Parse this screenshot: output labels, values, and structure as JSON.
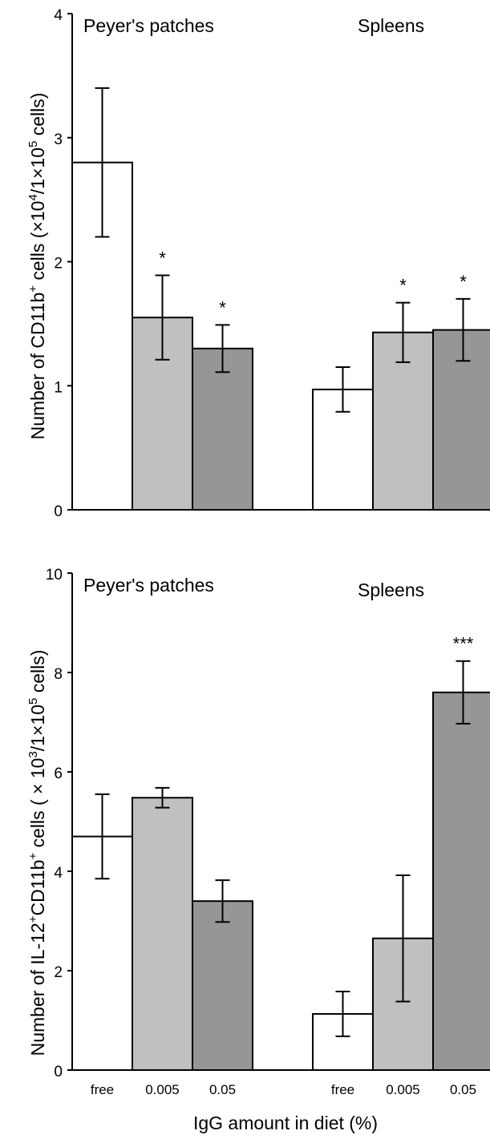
{
  "figure": {
    "xlabel": "IgG amount in diet (%)"
  },
  "chart_data": [
    {
      "type": "bar",
      "ylabel_parts": {
        "a": "Number of CD11b",
        "sup1": "+",
        "b": " cells (×10",
        "sup2": "4",
        "c": "/1×10",
        "sup3": "5",
        "d": " cells)"
      },
      "ylim": [
        0,
        4
      ],
      "yticks": [
        "0",
        "1",
        "2",
        "3",
        "4"
      ],
      "tick_values": [
        0,
        1,
        2,
        3,
        4
      ],
      "groups": [
        {
          "label": "Peyer's patches",
          "bars": [
            {
              "category": "free",
              "value": 2.8,
              "err": 0.6,
              "sig": ""
            },
            {
              "category": "0.005",
              "value": 1.55,
              "err": 0.34,
              "sig": "*"
            },
            {
              "category": "0.05",
              "value": 1.3,
              "err": 0.19,
              "sig": "*"
            }
          ]
        },
        {
          "label": "Spleens",
          "bars": [
            {
              "category": "free",
              "value": 0.97,
              "err": 0.18,
              "sig": ""
            },
            {
              "category": "0.005",
              "value": 1.43,
              "err": 0.24,
              "sig": "*"
            },
            {
              "category": "0.05",
              "value": 1.45,
              "err": 0.25,
              "sig": "*"
            }
          ]
        }
      ],
      "colors": [
        "#ffffff",
        "#c0c0c0",
        "#969696"
      ]
    },
    {
      "type": "bar",
      "ylabel_parts": {
        "a": "Number of IL-12",
        "sup1": "+",
        "b": "CD11b",
        "sup2": "+",
        "c": " cells ( × 10",
        "sup3": "3",
        "d": "/1×10",
        "sup4": "5",
        "e": " cells)"
      },
      "ylim": [
        0,
        10
      ],
      "yticks": [
        "0",
        "2",
        "4",
        "6",
        "8",
        "10"
      ],
      "tick_values": [
        0,
        2,
        4,
        6,
        8,
        10
      ],
      "groups": [
        {
          "label": "Peyer's patches",
          "bars": [
            {
              "category": "free",
              "value": 4.7,
              "err": 0.85,
              "sig": ""
            },
            {
              "category": "0.005",
              "value": 5.48,
              "err": 0.2,
              "sig": ""
            },
            {
              "category": "0.05",
              "value": 3.4,
              "err": 0.42,
              "sig": ""
            }
          ]
        },
        {
          "label": "Spleens",
          "bars": [
            {
              "category": "free",
              "value": 1.13,
              "err": 0.45,
              "sig": ""
            },
            {
              "category": "0.005",
              "value": 2.65,
              "err": 1.27,
              "sig": ""
            },
            {
              "category": "0.05",
              "value": 7.6,
              "err": 0.63,
              "sig": "***"
            }
          ]
        }
      ],
      "colors": [
        "#ffffff",
        "#c0c0c0",
        "#969696"
      ]
    }
  ]
}
